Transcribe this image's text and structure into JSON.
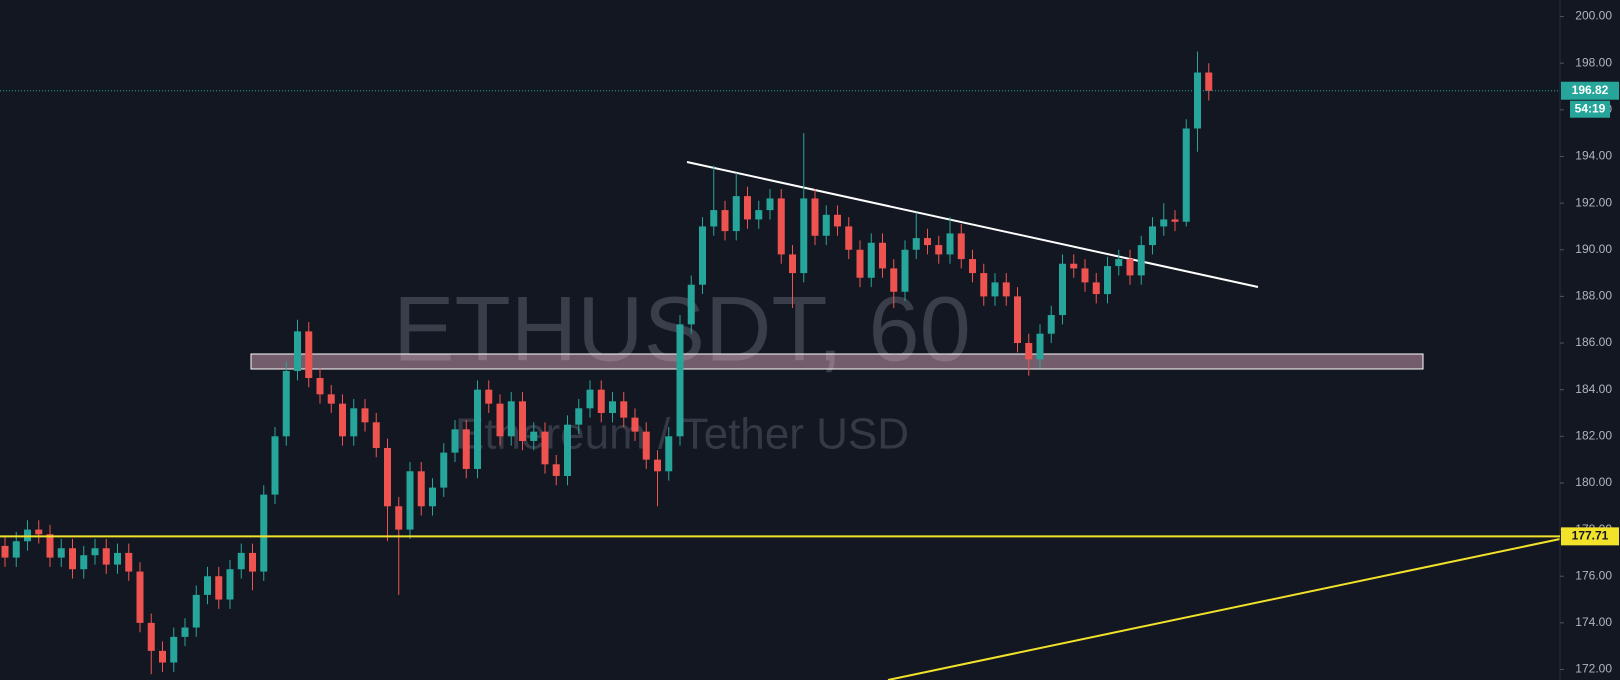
{
  "chart_data": {
    "type": "candlestick",
    "watermark": "ETHUSDT, 60",
    "subtitle": "Ethereum / Tether USD",
    "up_color": "#26a69a",
    "down_color": "#ef5350",
    "open": [
      177.3,
      176.8,
      177.5,
      178.0,
      177.8,
      176.8,
      177.2,
      176.3,
      176.9,
      177.2,
      176.5,
      177.0,
      176.2,
      174.0,
      172.8,
      172.3,
      173.4,
      173.8,
      175.2,
      176.0,
      175.0,
      176.3,
      177.0,
      176.2,
      179.5,
      182.0,
      184.8,
      186.5,
      184.5,
      183.8,
      183.4,
      182.0,
      183.2,
      182.6,
      181.5,
      179.0,
      178.0,
      180.5,
      179.0,
      179.8,
      181.3,
      182.3,
      180.6,
      184.0,
      183.4,
      182.0,
      183.5,
      181.8,
      182.2,
      180.8,
      180.3,
      182.5,
      183.2,
      184.0,
      183.0,
      183.5,
      182.8,
      182.2,
      181.0,
      180.5,
      182.0,
      186.8,
      188.5,
      191.0,
      191.7,
      190.8,
      192.3,
      191.3,
      191.7,
      192.2,
      189.8,
      189.0,
      192.2,
      190.6,
      191.5,
      191.0,
      190.0,
      188.8,
      190.3,
      189.2,
      188.2,
      190.0,
      190.5,
      190.2,
      189.8,
      190.7,
      189.6,
      189.0,
      188.0,
      188.6,
      188.0,
      186.0,
      185.3,
      186.4,
      187.2,
      189.4,
      189.2,
      188.6,
      188.1,
      189.3,
      189.6,
      188.9,
      190.2,
      191.0,
      191.3,
      191.2,
      195.2,
      197.6
    ],
    "high": [
      177.7,
      177.9,
      178.4,
      178.4,
      178.2,
      177.6,
      177.6,
      177.3,
      177.6,
      177.6,
      177.4,
      177.4,
      176.6,
      174.4,
      173.2,
      173.8,
      174.2,
      175.6,
      176.4,
      176.4,
      176.7,
      177.4,
      177.4,
      179.9,
      182.4,
      185.2,
      187.0,
      186.9,
      184.9,
      184.2,
      183.8,
      183.6,
      183.6,
      183.0,
      181.9,
      179.4,
      180.9,
      180.9,
      180.2,
      181.7,
      182.7,
      182.7,
      184.4,
      184.4,
      183.8,
      183.9,
      183.9,
      182.6,
      182.6,
      181.2,
      182.9,
      183.6,
      184.4,
      184.4,
      183.9,
      183.9,
      183.2,
      182.6,
      181.4,
      182.4,
      187.2,
      188.9,
      191.4,
      193.6,
      192.1,
      193.3,
      192.7,
      192.1,
      192.6,
      192.6,
      190.2,
      195.0,
      192.6,
      191.9,
      191.9,
      191.4,
      190.4,
      190.7,
      190.7,
      189.6,
      190.4,
      191.6,
      190.9,
      190.6,
      191.4,
      191.1,
      190.0,
      189.4,
      189.0,
      189.0,
      188.4,
      186.4,
      186.8,
      187.6,
      189.8,
      189.8,
      189.6,
      189.0,
      189.7,
      190.0,
      190.0,
      190.6,
      191.4,
      192.0,
      191.7,
      195.6,
      198.5,
      198.0
    ],
    "low": [
      176.4,
      176.4,
      177.1,
      177.4,
      176.4,
      176.4,
      175.9,
      175.9,
      176.5,
      176.1,
      176.1,
      175.8,
      173.6,
      171.8,
      171.9,
      171.9,
      173.0,
      173.4,
      174.8,
      174.6,
      174.6,
      175.9,
      175.4,
      175.8,
      179.1,
      181.6,
      184.4,
      184.1,
      183.4,
      183.0,
      181.6,
      181.6,
      182.2,
      181.1,
      177.5,
      175.2,
      177.6,
      178.6,
      178.6,
      179.4,
      180.9,
      180.2,
      180.2,
      183.0,
      181.6,
      181.6,
      181.4,
      181.4,
      180.4,
      179.9,
      179.9,
      182.1,
      182.8,
      182.6,
      182.6,
      182.4,
      181.8,
      180.6,
      179.0,
      180.1,
      181.6,
      186.4,
      188.1,
      190.6,
      190.4,
      190.4,
      190.9,
      190.9,
      191.3,
      189.4,
      187.5,
      188.6,
      190.2,
      190.2,
      190.6,
      189.6,
      188.4,
      188.4,
      188.8,
      187.5,
      187.8,
      189.6,
      189.8,
      189.4,
      189.4,
      189.2,
      188.6,
      187.6,
      187.6,
      187.6,
      185.6,
      184.6,
      184.9,
      186.0,
      186.8,
      188.8,
      188.2,
      187.7,
      187.7,
      188.9,
      188.5,
      188.5,
      189.8,
      190.6,
      190.8,
      191.0,
      194.2,
      196.4
    ],
    "close": [
      176.8,
      177.5,
      178.0,
      177.8,
      176.8,
      177.2,
      176.3,
      176.9,
      177.2,
      176.5,
      177.0,
      176.2,
      174.0,
      172.8,
      172.3,
      173.4,
      173.8,
      175.2,
      176.0,
      175.0,
      176.3,
      177.0,
      176.2,
      179.5,
      182.0,
      184.8,
      186.5,
      184.5,
      183.8,
      183.4,
      182.0,
      183.2,
      182.6,
      181.5,
      179.0,
      178.0,
      180.5,
      179.0,
      179.8,
      181.3,
      182.3,
      180.6,
      184.0,
      183.4,
      182.0,
      183.5,
      181.8,
      182.2,
      180.8,
      180.3,
      182.5,
      183.2,
      184.0,
      183.0,
      183.5,
      182.8,
      182.2,
      181.0,
      180.5,
      182.0,
      186.8,
      188.5,
      191.0,
      191.7,
      190.8,
      192.3,
      191.3,
      191.7,
      192.2,
      189.8,
      189.0,
      192.2,
      190.6,
      191.5,
      191.0,
      190.0,
      188.8,
      190.3,
      189.2,
      188.2,
      190.0,
      190.5,
      190.2,
      189.8,
      190.7,
      189.6,
      189.0,
      188.0,
      188.6,
      188.0,
      186.0,
      185.3,
      186.4,
      187.2,
      189.4,
      189.2,
      188.6,
      188.1,
      189.3,
      189.6,
      188.9,
      190.2,
      191.0,
      191.3,
      191.2,
      195.2,
      197.6,
      196.82
    ],
    "ylim": [
      171.55,
      200.71
    ],
    "yticks": [
      {
        "value": 172,
        "label": "172.00"
      },
      {
        "value": 174,
        "label": "174.00"
      },
      {
        "value": 176,
        "label": "176.00"
      },
      {
        "value": 178,
        "label": "178.00"
      },
      {
        "value": 180,
        "label": "180.00"
      },
      {
        "value": 182,
        "label": "182.00"
      },
      {
        "value": 184,
        "label": "184.00"
      },
      {
        "value": 186,
        "label": "186.00"
      },
      {
        "value": 188,
        "label": "188.00"
      },
      {
        "value": 190,
        "label": "190.00"
      },
      {
        "value": 192,
        "label": "192.00"
      },
      {
        "value": 194,
        "label": "194.00"
      },
      {
        "value": 196,
        "label": "196.00"
      },
      {
        "value": 198,
        "label": "198.00"
      },
      {
        "value": 200,
        "label": "200.00"
      }
    ],
    "last_price": 196.82,
    "countdown": "54:19",
    "horizontal_line": {
      "value": 177.71,
      "color": "#f2e22a"
    }
  }
}
